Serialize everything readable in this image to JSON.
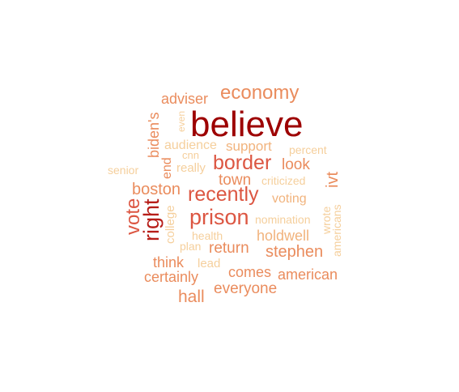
{
  "word_cloud": {
    "palette": {
      "level1": "#f5cf9c",
      "level2": "#f1b37d",
      "level3": "#ea8c5d",
      "level4": "#dc5642",
      "level5": "#b71e19",
      "level6": "#9d0000"
    },
    "words": [
      {
        "text": "believe",
        "level": 6,
        "rotated": false
      },
      {
        "text": "economy",
        "level": 3,
        "rotated": false
      },
      {
        "text": "adviser",
        "level": 3,
        "rotated": false
      },
      {
        "text": "even",
        "level": 1,
        "rotated": true
      },
      {
        "text": "biden's",
        "level": 3,
        "rotated": true
      },
      {
        "text": "audience",
        "level": 1,
        "rotated": false
      },
      {
        "text": "support",
        "level": 2,
        "rotated": false
      },
      {
        "text": "percent",
        "level": 1,
        "rotated": false
      },
      {
        "text": "cnn",
        "level": 1,
        "rotated": false
      },
      {
        "text": "end",
        "level": 3,
        "rotated": true
      },
      {
        "text": "really",
        "level": 1,
        "rotated": false
      },
      {
        "text": "border",
        "level": 4,
        "rotated": false
      },
      {
        "text": "look",
        "level": 3,
        "rotated": false
      },
      {
        "text": "senior",
        "level": 1,
        "rotated": false
      },
      {
        "text": "town",
        "level": 3,
        "rotated": false
      },
      {
        "text": "criticized",
        "level": 1,
        "rotated": false
      },
      {
        "text": "ivt",
        "level": 3,
        "rotated": true
      },
      {
        "text": "boston",
        "level": 3,
        "rotated": false
      },
      {
        "text": "recently",
        "level": 4,
        "rotated": false
      },
      {
        "text": "voting",
        "level": 2,
        "rotated": false
      },
      {
        "text": "vote",
        "level": 4,
        "rotated": true
      },
      {
        "text": "right",
        "level": 5,
        "rotated": true
      },
      {
        "text": "college",
        "level": 1,
        "rotated": true
      },
      {
        "text": "prison",
        "level": 4,
        "rotated": false
      },
      {
        "text": "nomination",
        "level": 1,
        "rotated": false
      },
      {
        "text": "wrote",
        "level": 1,
        "rotated": true
      },
      {
        "text": "americans",
        "level": 1,
        "rotated": true
      },
      {
        "text": "health",
        "level": 1,
        "rotated": false
      },
      {
        "text": "holdwell",
        "level": 2,
        "rotated": false
      },
      {
        "text": "plan",
        "level": 1,
        "rotated": false
      },
      {
        "text": "return",
        "level": 3,
        "rotated": false
      },
      {
        "text": "stephen",
        "level": 3,
        "rotated": false
      },
      {
        "text": "think",
        "level": 3,
        "rotated": false
      },
      {
        "text": "lead",
        "level": 1,
        "rotated": false
      },
      {
        "text": "comes",
        "level": 3,
        "rotated": false
      },
      {
        "text": "certainly",
        "level": 3,
        "rotated": false
      },
      {
        "text": "american",
        "level": 3,
        "rotated": false
      },
      {
        "text": "everyone",
        "level": 3,
        "rotated": false
      },
      {
        "text": "hall",
        "level": 3,
        "rotated": false
      }
    ]
  }
}
